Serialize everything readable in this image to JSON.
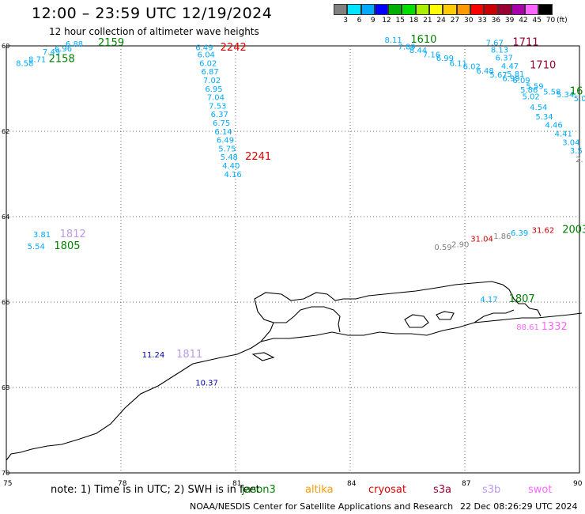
{
  "header": {
    "title": "12:00 – 23:59 UTC 12/19/2024",
    "subtitle": "12 hour collection of altimeter wave heights"
  },
  "colorbar": {
    "unit": "(ft)",
    "ticks": [
      "3",
      "6",
      "9",
      "12",
      "15",
      "18",
      "21",
      "24",
      "27",
      "30",
      "33",
      "36",
      "39",
      "42",
      "45",
      "70"
    ],
    "colors": [
      "#808080",
      "#00e5ff",
      "#00aaff",
      "#0000ff",
      "#00b000",
      "#00e000",
      "#aaee00",
      "#ffff00",
      "#ffcc00",
      "#ff9900",
      "#ff0000",
      "#cc0000",
      "#990033",
      "#aa00aa",
      "#ff66ff",
      "#000000"
    ]
  },
  "map": {
    "lon_ticks": [
      "75",
      "78",
      "81",
      "84",
      "87",
      "90"
    ],
    "lat_ticks": [
      "60",
      "62",
      "64",
      "66",
      "68",
      "70"
    ],
    "wave_labels": [
      {
        "t": "8.58",
        "lon": 75.25,
        "lat": 60.47,
        "c": "#00aaff"
      },
      {
        "t": "8.71",
        "lon": 75.58,
        "lat": 60.38,
        "c": "#00aaff"
      },
      {
        "t": "7.49",
        "lon": 75.95,
        "lat": 60.2,
        "c": "#00aaff"
      },
      {
        "t": "6.96",
        "lon": 76.26,
        "lat": 60.13,
        "c": "#00aaff"
      },
      {
        "t": "6.88",
        "lon": 76.55,
        "lat": 60.02,
        "c": "#00aaff"
      },
      {
        "t": "2159",
        "lon": 77.4,
        "lat": 60.0,
        "c": "#008000",
        "big": true
      },
      {
        "t": "2158",
        "lon": 76.11,
        "lat": 60.38,
        "c": "#008000",
        "big": true
      },
      {
        "t": "6.49",
        "lon": 79.95,
        "lat": 60.1,
        "c": "#00aaff"
      },
      {
        "t": "6.04",
        "lon": 80.0,
        "lat": 60.27,
        "c": "#00aaff"
      },
      {
        "t": "6.02",
        "lon": 80.05,
        "lat": 60.47,
        "c": "#00aaff"
      },
      {
        "t": "6.87",
        "lon": 80.1,
        "lat": 60.67,
        "c": "#00aaff"
      },
      {
        "t": "7.02",
        "lon": 80.15,
        "lat": 60.87,
        "c": "#00aaff"
      },
      {
        "t": "6.95",
        "lon": 80.2,
        "lat": 61.07,
        "c": "#00aaff"
      },
      {
        "t": "7.04",
        "lon": 80.25,
        "lat": 61.27,
        "c": "#00aaff"
      },
      {
        "t": "7.53",
        "lon": 80.3,
        "lat": 61.47,
        "c": "#00aaff"
      },
      {
        "t": "6.37",
        "lon": 80.35,
        "lat": 61.67,
        "c": "#00aaff"
      },
      {
        "t": "6.75",
        "lon": 80.4,
        "lat": 61.87,
        "c": "#00aaff"
      },
      {
        "t": "6.14",
        "lon": 80.45,
        "lat": 62.07,
        "c": "#00aaff"
      },
      {
        "t": "6.49",
        "lon": 80.5,
        "lat": 62.27,
        "c": "#00aaff"
      },
      {
        "t": "5.75",
        "lon": 80.55,
        "lat": 62.47,
        "c": "#00aaff"
      },
      {
        "t": "5.48",
        "lon": 80.6,
        "lat": 62.67,
        "c": "#00aaff"
      },
      {
        "t": "4.40",
        "lon": 80.65,
        "lat": 62.87,
        "c": "#00aaff"
      },
      {
        "t": "4.16",
        "lon": 80.7,
        "lat": 63.07,
        "c": "#00aaff"
      },
      {
        "t": "2242",
        "lon": 80.6,
        "lat": 60.11,
        "c": "#dd0000",
        "big": true
      },
      {
        "t": "2241",
        "lon": 81.25,
        "lat": 62.67,
        "c": "#dd0000",
        "big": true
      },
      {
        "t": "8.11",
        "lon": 84.9,
        "lat": 59.93,
        "c": "#00aaff"
      },
      {
        "t": "7.89",
        "lon": 85.25,
        "lat": 60.08,
        "c": "#00aaff"
      },
      {
        "t": "8.44",
        "lon": 85.55,
        "lat": 60.17,
        "c": "#00aaff"
      },
      {
        "t": "7.16",
        "lon": 85.9,
        "lat": 60.27,
        "c": "#00aaff"
      },
      {
        "t": "6.99",
        "lon": 86.25,
        "lat": 60.35,
        "c": "#00aaff"
      },
      {
        "t": "6.11",
        "lon": 86.6,
        "lat": 60.47,
        "c": "#00aaff"
      },
      {
        "t": "6.02",
        "lon": 86.95,
        "lat": 60.55,
        "c": "#00aaff"
      },
      {
        "t": "6.48",
        "lon": 87.3,
        "lat": 60.65,
        "c": "#00aaff"
      },
      {
        "t": "5.67",
        "lon": 87.65,
        "lat": 60.74,
        "c": "#00aaff"
      },
      {
        "t": "1610",
        "lon": 85.58,
        "lat": 59.93,
        "c": "#008000",
        "big": true
      },
      {
        "t": "7.67",
        "lon": 87.55,
        "lat": 59.99,
        "c": "#00aaff"
      },
      {
        "t": "8.13",
        "lon": 87.68,
        "lat": 60.16,
        "c": "#00aaff"
      },
      {
        "t": "6.37",
        "lon": 87.8,
        "lat": 60.34,
        "c": "#00aaff"
      },
      {
        "t": "4.47",
        "lon": 87.95,
        "lat": 60.54,
        "c": "#00aaff"
      },
      {
        "t": "5.81",
        "lon": 88.1,
        "lat": 60.72,
        "c": "#00aaff"
      },
      {
        "t": "6.99",
        "lon": 87.98,
        "lat": 60.82,
        "c": "#00aaff"
      },
      {
        "t": "6.09",
        "lon": 88.25,
        "lat": 60.87,
        "c": "#00aaff"
      },
      {
        "t": "5.59",
        "lon": 88.6,
        "lat": 61.01,
        "c": "#00aaff"
      },
      {
        "t": "5.86",
        "lon": 88.45,
        "lat": 61.09,
        "c": "#00aaff"
      },
      {
        "t": "5.58",
        "lon": 89.05,
        "lat": 61.14,
        "c": "#00aaff"
      },
      {
        "t": "5.34",
        "lon": 89.4,
        "lat": 61.2,
        "c": "#00aaff"
      },
      {
        "t": "5.0",
        "lon": 89.85,
        "lat": 61.3,
        "c": "#00aaff"
      },
      {
        "t": "5.02",
        "lon": 88.5,
        "lat": 61.25,
        "c": "#00aaff"
      },
      {
        "t": "4.54",
        "lon": 88.7,
        "lat": 61.5,
        "c": "#00aaff"
      },
      {
        "t": "5.34",
        "lon": 88.85,
        "lat": 61.72,
        "c": "#00aaff"
      },
      {
        "t": "4.46",
        "lon": 89.1,
        "lat": 61.92,
        "c": "#00aaff"
      },
      {
        "t": "4.41",
        "lon": 89.35,
        "lat": 62.12,
        "c": "#00aaff"
      },
      {
        "t": "3.04",
        "lon": 89.55,
        "lat": 62.32,
        "c": "#00aaff"
      },
      {
        "t": "3.5",
        "lon": 89.75,
        "lat": 62.52,
        "c": "#00aaff"
      },
      {
        "t": "2.",
        "lon": 89.9,
        "lat": 62.72,
        "c": "#808080"
      },
      {
        "t": "1711",
        "lon": 88.25,
        "lat": 59.99,
        "c": "#990033",
        "big": true
      },
      {
        "t": "1710",
        "lon": 88.7,
        "lat": 60.53,
        "c": "#990033",
        "big": true
      },
      {
        "t": "16",
        "lon": 89.75,
        "lat": 61.14,
        "c": "#008000",
        "big": true
      },
      {
        "t": "3.81",
        "lon": 75.7,
        "lat": 64.48,
        "c": "#00aaff"
      },
      {
        "t": "5.54",
        "lon": 75.55,
        "lat": 64.76,
        "c": "#00aaff"
      },
      {
        "t": "1812",
        "lon": 76.4,
        "lat": 64.48,
        "c": "#bb99ee",
        "big": true
      },
      {
        "t": "1805",
        "lon": 76.25,
        "lat": 64.76,
        "c": "#008000",
        "big": true
      },
      {
        "t": "0.59",
        "lon": 86.2,
        "lat": 64.78,
        "c": "#808080"
      },
      {
        "t": "2.90",
        "lon": 86.65,
        "lat": 64.71,
        "c": "#808080"
      },
      {
        "t": "31.04",
        "lon": 87.15,
        "lat": 64.58,
        "c": "#cc0000"
      },
      {
        "t": "1.86",
        "lon": 87.75,
        "lat": 64.52,
        "c": "#808080"
      },
      {
        "t": "6.39",
        "lon": 88.2,
        "lat": 64.44,
        "c": "#00aaff"
      },
      {
        "t": "31.62",
        "lon": 88.75,
        "lat": 64.38,
        "c": "#cc0000"
      },
      {
        "t": "2003",
        "lon": 89.55,
        "lat": 64.38,
        "c": "#008000",
        "big": true
      },
      {
        "t": "4.17",
        "lon": 87.4,
        "lat": 66.0,
        "c": "#00aaff"
      },
      {
        "t": "1807",
        "lon": 88.15,
        "lat": 66.0,
        "c": "#008000",
        "big": true
      },
      {
        "t": "88.61",
        "lon": 88.35,
        "lat": 66.65,
        "c": "#ff66ff"
      },
      {
        "t": "1332",
        "lon": 89.0,
        "lat": 66.65,
        "c": "#ff66ff",
        "big": true
      },
      {
        "t": "11.24",
        "lon": 78.55,
        "lat": 67.3,
        "c": "#0000aa"
      },
      {
        "t": "1811",
        "lon": 79.45,
        "lat": 67.3,
        "c": "#bb99ee",
        "big": true
      },
      {
        "t": "10.37",
        "lon": 79.95,
        "lat": 67.95,
        "c": "#0000aa"
      }
    ]
  },
  "footer": {
    "note": "note: 1) Time is in UTC; 2) SWH is in feet",
    "legend": [
      {
        "label": "jason3",
        "color": "#008000"
      },
      {
        "label": "altika",
        "color": "#ff9900"
      },
      {
        "label": "cryosat",
        "color": "#dd0000"
      },
      {
        "label": "s3a",
        "color": "#990033"
      },
      {
        "label": "s3b",
        "color": "#bb99ee"
      },
      {
        "label": "swot",
        "color": "#ff66ff"
      }
    ],
    "credit": "NOAA/NESDIS Center for Satellite Applications and Research",
    "timestamp": "22 Dec 08:26:29 UTC 2024"
  }
}
